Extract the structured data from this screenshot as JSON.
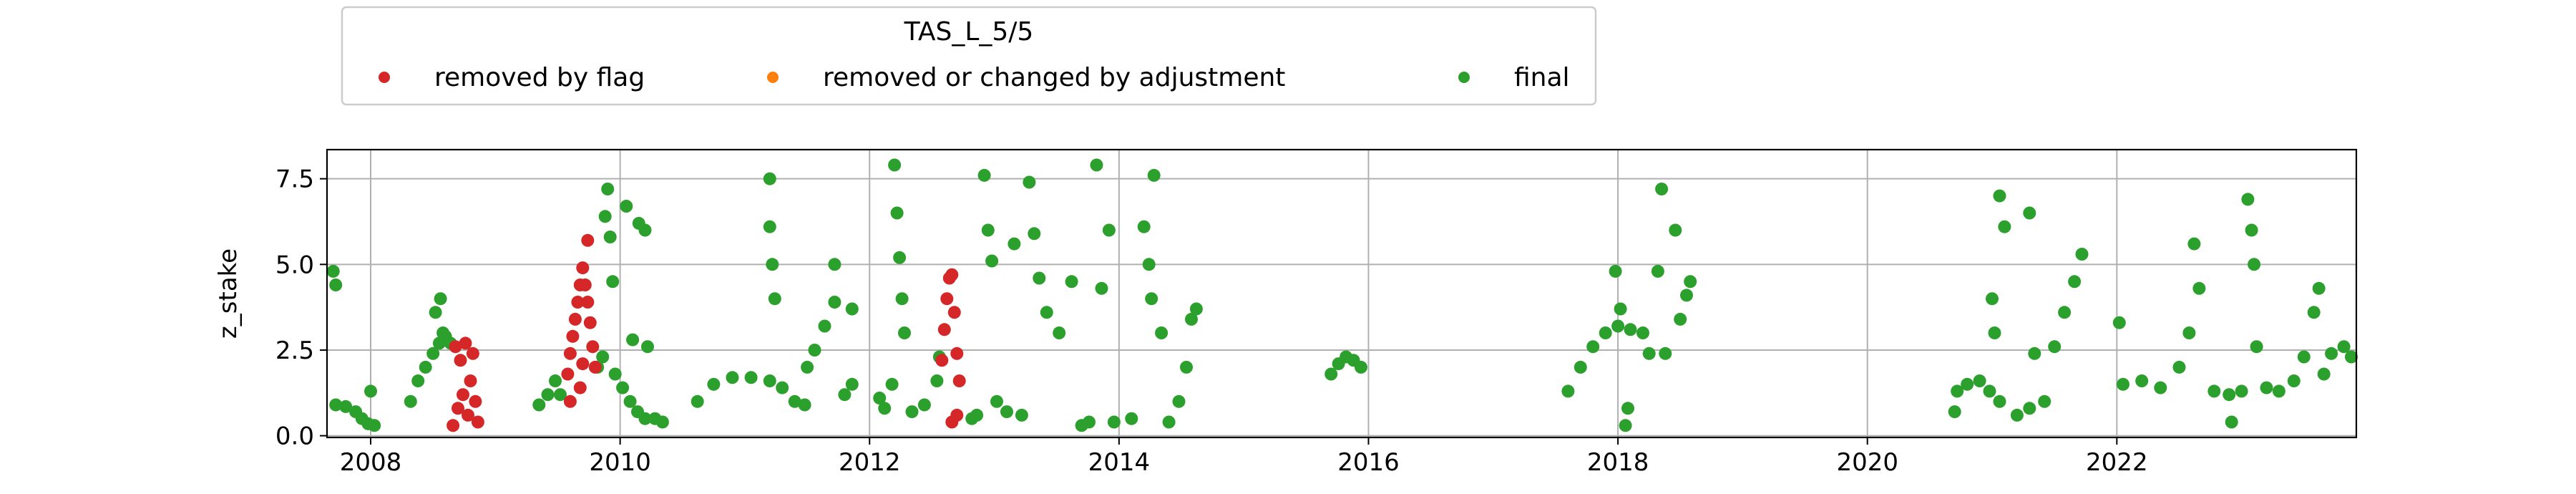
{
  "chart_data": {
    "type": "scatter",
    "title": "",
    "xlabel": "",
    "ylabel": "z_stake",
    "xlim": [
      2007.65,
      2023.92
    ],
    "ylim": [
      -0.05,
      8.35
    ],
    "xticks": [
      2008,
      2010,
      2012,
      2014,
      2016,
      2018,
      2020,
      2022
    ],
    "yticks": [
      0.0,
      2.5,
      5.0,
      7.5
    ],
    "ytick_labels": [
      "0.0",
      "2.5",
      "5.0",
      "7.5"
    ],
    "grid": true,
    "legend": {
      "title": "TAS_L_5/5",
      "placement": "top-center-outside",
      "columns": 3
    },
    "series": [
      {
        "name": "removed by flag",
        "color": "#d62728",
        "points": [
          [
            2008.66,
            0.3
          ],
          [
            2008.68,
            2.6
          ],
          [
            2008.7,
            0.8
          ],
          [
            2008.72,
            2.2
          ],
          [
            2008.74,
            1.2
          ],
          [
            2008.76,
            2.7
          ],
          [
            2008.78,
            0.6
          ],
          [
            2008.8,
            1.6
          ],
          [
            2008.82,
            2.4
          ],
          [
            2008.84,
            1.0
          ],
          [
            2008.86,
            0.4
          ],
          [
            2009.58,
            1.8
          ],
          [
            2009.6,
            2.4
          ],
          [
            2009.62,
            2.9
          ],
          [
            2009.64,
            3.4
          ],
          [
            2009.66,
            3.9
          ],
          [
            2009.68,
            4.4
          ],
          [
            2009.7,
            4.9
          ],
          [
            2009.72,
            4.4
          ],
          [
            2009.74,
            3.9
          ],
          [
            2009.76,
            3.3
          ],
          [
            2009.78,
            2.6
          ],
          [
            2009.8,
            2.0
          ],
          [
            2009.6,
            1.0
          ],
          [
            2009.68,
            1.4
          ],
          [
            2009.74,
            5.7
          ],
          [
            2009.7,
            2.1
          ],
          [
            2012.58,
            2.2
          ],
          [
            2012.6,
            3.1
          ],
          [
            2012.62,
            4.0
          ],
          [
            2012.64,
            4.6
          ],
          [
            2012.66,
            4.7
          ],
          [
            2012.68,
            3.6
          ],
          [
            2012.7,
            2.4
          ],
          [
            2012.72,
            1.6
          ],
          [
            2012.66,
            0.4
          ],
          [
            2012.7,
            0.6
          ]
        ]
      },
      {
        "name": "removed or changed by adjustment",
        "color": "#ff7f0e",
        "points": []
      },
      {
        "name": "final",
        "color": "#2ca02c",
        "points": [
          [
            2007.7,
            4.8
          ],
          [
            2007.72,
            4.4
          ],
          [
            2007.72,
            0.9
          ],
          [
            2007.8,
            0.85
          ],
          [
            2007.88,
            0.7
          ],
          [
            2007.93,
            0.5
          ],
          [
            2007.98,
            0.35
          ],
          [
            2008.03,
            0.3
          ],
          [
            2008.0,
            1.3
          ],
          [
            2008.32,
            1.0
          ],
          [
            2008.38,
            1.6
          ],
          [
            2008.44,
            2.0
          ],
          [
            2008.5,
            2.4
          ],
          [
            2008.55,
            2.7
          ],
          [
            2008.6,
            2.9
          ],
          [
            2008.52,
            3.6
          ],
          [
            2008.56,
            4.0
          ],
          [
            2008.58,
            3.0
          ],
          [
            2008.64,
            2.7
          ],
          [
            2009.35,
            0.9
          ],
          [
            2009.42,
            1.2
          ],
          [
            2009.48,
            1.6
          ],
          [
            2009.52,
            1.2
          ],
          [
            2009.82,
            2.0
          ],
          [
            2009.86,
            2.3
          ],
          [
            2009.88,
            6.4
          ],
          [
            2009.9,
            7.2
          ],
          [
            2009.92,
            5.8
          ],
          [
            2009.94,
            4.5
          ],
          [
            2009.96,
            1.8
          ],
          [
            2010.02,
            1.4
          ],
          [
            2010.08,
            1.0
          ],
          [
            2010.14,
            0.7
          ],
          [
            2010.2,
            0.5
          ],
          [
            2010.1,
            2.8
          ],
          [
            2010.05,
            6.7
          ],
          [
            2010.15,
            6.2
          ],
          [
            2010.2,
            6.0
          ],
          [
            2010.22,
            2.6
          ],
          [
            2010.28,
            0.5
          ],
          [
            2010.34,
            0.4
          ],
          [
            2010.62,
            1.0
          ],
          [
            2010.75,
            1.5
          ],
          [
            2010.9,
            1.7
          ],
          [
            2011.05,
            1.7
          ],
          [
            2011.2,
            1.6
          ],
          [
            2011.3,
            1.4
          ],
          [
            2011.2,
            7.5
          ],
          [
            2011.2,
            6.1
          ],
          [
            2011.22,
            5.0
          ],
          [
            2011.24,
            4.0
          ],
          [
            2011.4,
            1.0
          ],
          [
            2011.48,
            0.9
          ],
          [
            2011.5,
            2.0
          ],
          [
            2011.56,
            2.5
          ],
          [
            2011.64,
            3.2
          ],
          [
            2011.72,
            3.9
          ],
          [
            2011.8,
            1.2
          ],
          [
            2011.86,
            1.5
          ],
          [
            2011.72,
            5.0
          ],
          [
            2011.86,
            3.7
          ],
          [
            2012.08,
            1.1
          ],
          [
            2012.12,
            0.8
          ],
          [
            2012.18,
            1.5
          ],
          [
            2012.2,
            7.9
          ],
          [
            2012.22,
            6.5
          ],
          [
            2012.24,
            5.2
          ],
          [
            2012.26,
            4.0
          ],
          [
            2012.28,
            3.0
          ],
          [
            2012.34,
            0.7
          ],
          [
            2012.44,
            0.9
          ],
          [
            2012.54,
            1.6
          ],
          [
            2012.56,
            2.3
          ],
          [
            2012.82,
            0.5
          ],
          [
            2012.86,
            0.6
          ],
          [
            2012.92,
            7.6
          ],
          [
            2012.95,
            6.0
          ],
          [
            2012.98,
            5.1
          ],
          [
            2013.02,
            1.0
          ],
          [
            2013.1,
            0.7
          ],
          [
            2013.16,
            5.6
          ],
          [
            2013.22,
            0.6
          ],
          [
            2013.28,
            7.4
          ],
          [
            2013.32,
            5.9
          ],
          [
            2013.36,
            4.6
          ],
          [
            2013.42,
            3.6
          ],
          [
            2013.52,
            3.0
          ],
          [
            2013.62,
            4.5
          ],
          [
            2013.7,
            0.3
          ],
          [
            2013.76,
            0.4
          ],
          [
            2013.82,
            7.9
          ],
          [
            2013.86,
            4.3
          ],
          [
            2013.92,
            6.0
          ],
          [
            2013.96,
            0.4
          ],
          [
            2014.1,
            0.5
          ],
          [
            2014.2,
            6.1
          ],
          [
            2014.24,
            5.0
          ],
          [
            2014.26,
            4.0
          ],
          [
            2014.28,
            7.6
          ],
          [
            2014.34,
            3.0
          ],
          [
            2014.4,
            0.4
          ],
          [
            2014.48,
            1.0
          ],
          [
            2014.54,
            2.0
          ],
          [
            2014.58,
            3.4
          ],
          [
            2014.62,
            3.7
          ],
          [
            2015.7,
            1.8
          ],
          [
            2015.76,
            2.1
          ],
          [
            2015.82,
            2.3
          ],
          [
            2015.88,
            2.2
          ],
          [
            2015.94,
            2.0
          ],
          [
            2017.6,
            1.3
          ],
          [
            2017.7,
            2.0
          ],
          [
            2017.8,
            2.6
          ],
          [
            2017.9,
            3.0
          ],
          [
            2018.0,
            3.2
          ],
          [
            2018.1,
            3.1
          ],
          [
            2017.98,
            4.8
          ],
          [
            2018.02,
            3.7
          ],
          [
            2018.06,
            0.3
          ],
          [
            2018.08,
            0.8
          ],
          [
            2018.2,
            3.0
          ],
          [
            2018.25,
            2.4
          ],
          [
            2018.32,
            4.8
          ],
          [
            2018.35,
            7.2
          ],
          [
            2018.38,
            2.4
          ],
          [
            2018.46,
            6.0
          ],
          [
            2018.5,
            3.4
          ],
          [
            2018.55,
            4.1
          ],
          [
            2018.58,
            4.5
          ],
          [
            2020.7,
            0.7
          ],
          [
            2020.72,
            1.3
          ],
          [
            2020.8,
            1.5
          ],
          [
            2020.9,
            1.6
          ],
          [
            2020.98,
            1.3
          ],
          [
            2021.0,
            4.0
          ],
          [
            2021.02,
            3.0
          ],
          [
            2021.06,
            1.0
          ],
          [
            2021.06,
            7.0
          ],
          [
            2021.1,
            6.1
          ],
          [
            2021.2,
            0.6
          ],
          [
            2021.3,
            0.8
          ],
          [
            2021.3,
            6.5
          ],
          [
            2021.34,
            2.4
          ],
          [
            2021.42,
            1.0
          ],
          [
            2021.5,
            2.6
          ],
          [
            2021.58,
            3.6
          ],
          [
            2021.66,
            4.5
          ],
          [
            2021.72,
            5.3
          ],
          [
            2022.02,
            3.3
          ],
          [
            2022.05,
            1.5
          ],
          [
            2022.2,
            1.6
          ],
          [
            2022.35,
            1.4
          ],
          [
            2022.5,
            2.0
          ],
          [
            2022.58,
            3.0
          ],
          [
            2022.62,
            5.6
          ],
          [
            2022.66,
            4.3
          ],
          [
            2022.78,
            1.3
          ],
          [
            2022.9,
            1.2
          ],
          [
            2022.92,
            0.4
          ],
          [
            2023.0,
            1.3
          ],
          [
            2023.05,
            6.9
          ],
          [
            2023.08,
            6.0
          ],
          [
            2023.1,
            5.0
          ],
          [
            2023.12,
            2.6
          ],
          [
            2023.2,
            1.4
          ],
          [
            2023.3,
            1.3
          ],
          [
            2023.42,
            1.6
          ],
          [
            2023.5,
            2.3
          ],
          [
            2023.58,
            3.6
          ],
          [
            2023.62,
            4.3
          ],
          [
            2023.66,
            1.8
          ],
          [
            2023.72,
            2.4
          ],
          [
            2023.82,
            2.6
          ],
          [
            2023.88,
            2.3
          ]
        ]
      }
    ]
  }
}
